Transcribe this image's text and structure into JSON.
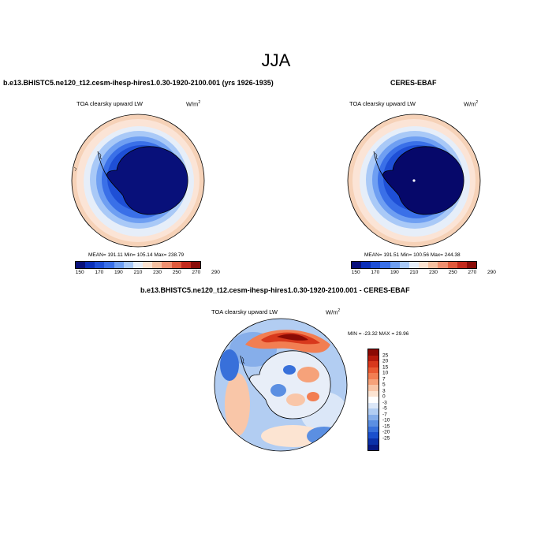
{
  "figure": {
    "season": "JJA"
  },
  "panels": {
    "model": {
      "title": "b.e13.BHISTC5.ne120_t12.cesm-ihesp-hires1.0.30-1920-2100.001 (yrs 1926-1935)",
      "variable": "TOA clearsky upward LW",
      "units_base": "W/m",
      "units_exp": "2",
      "stats": "MEAN= 191.11  Min= 105.14  Max= 238.79"
    },
    "obs": {
      "title": "CERES-EBAF",
      "variable": "TOA clearsky upward LW",
      "units_base": "W/m",
      "units_exp": "2",
      "stats": "MEAN= 191.51  Min= 100.56  Max= 244.38"
    },
    "diff": {
      "title": "b.e13.BHISTC5.ne120_t12.cesm-ihesp-hires1.0.30-1920-2100.001 - CERES-EBAF",
      "variable": "TOA clearsky upward LW",
      "units_base": "W/m",
      "units_exp": "2",
      "stats": "MIN = -23.32 MAX =  29.96"
    }
  },
  "colorbars": {
    "absolute": {
      "colors": [
        "#08107a",
        "#0a2fb8",
        "#1e4fd6",
        "#3a70e8",
        "#6f9ff2",
        "#a9c9f7",
        "#e6eef9",
        "#fbe2d0",
        "#f6c0a0",
        "#ef9070",
        "#e05a3c",
        "#c32a1c",
        "#8a0c08"
      ],
      "labels": [
        "150",
        "170",
        "190",
        "210",
        "230",
        "250",
        "270",
        "290"
      ]
    },
    "difference": {
      "colors": [
        "#8b0a04",
        "#b51a0c",
        "#d8381c",
        "#ea5a32",
        "#f27e52",
        "#f6a27a",
        "#f9c6a8",
        "#fce4d2",
        "#ffffff",
        "#dbe7f8",
        "#b2cdf2",
        "#86aeea",
        "#5b8fe2",
        "#3870da",
        "#1a4fcc",
        "#0a30a8",
        "#061883"
      ],
      "labels": [
        "25",
        "20",
        "15",
        "10",
        "7",
        "5",
        "3",
        "0",
        "-3",
        "-5",
        "-7",
        "-10",
        "-15",
        "-20",
        "-25"
      ]
    }
  }
}
